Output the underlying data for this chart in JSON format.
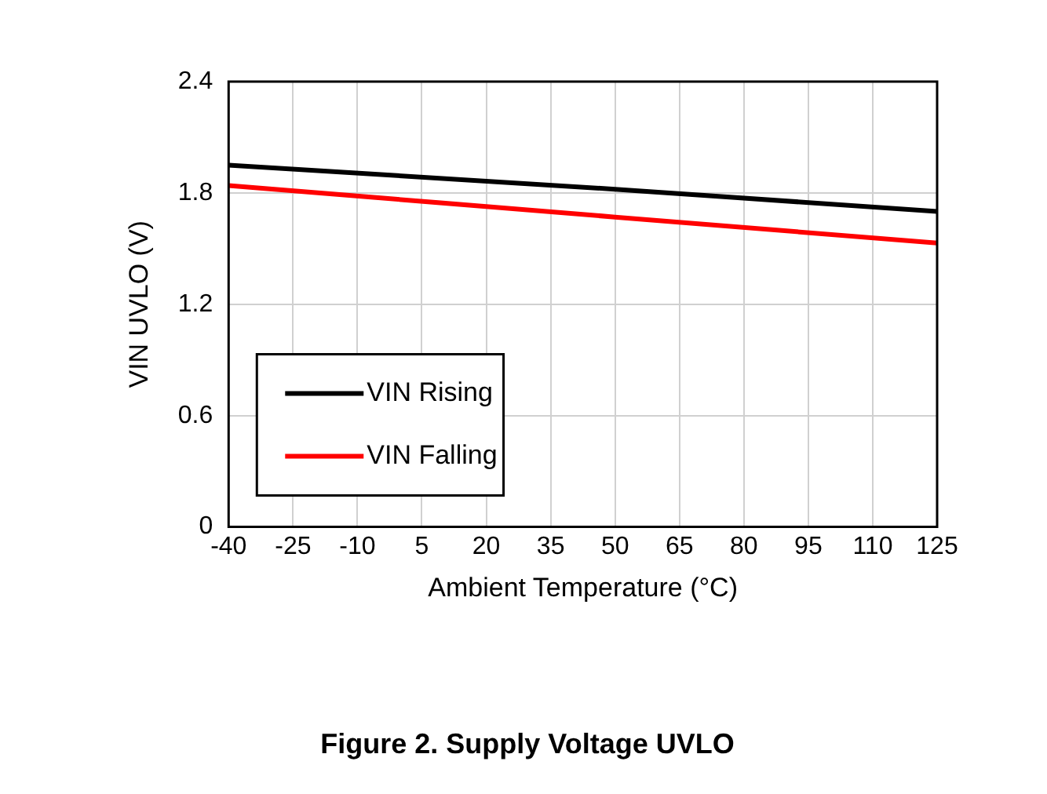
{
  "chart_data": {
    "type": "line",
    "title": "Figure 2. Supply Voltage UVLO",
    "xlabel": "Ambient Temperature (°C)",
    "ylabel": "VIN UVLO (V)",
    "x": [
      -40,
      50,
      125
    ],
    "series": [
      {
        "name": "VIN Rising",
        "color": "#000000",
        "values": [
          1.95,
          1.82,
          1.7
        ]
      },
      {
        "name": "VIN Falling",
        "color": "#ff0000",
        "values": [
          1.84,
          1.67,
          1.53
        ]
      }
    ],
    "xlim": [
      -40,
      125
    ],
    "xticks": [
      -40,
      -25,
      -10,
      5,
      20,
      35,
      50,
      65,
      80,
      95,
      110,
      125
    ],
    "ylim": [
      0,
      2.4
    ],
    "yticks": [
      0,
      0.6,
      1.2,
      1.8,
      2.4
    ],
    "grid": true,
    "legend": "bottom left",
    "marker": "none",
    "line_style": "solid"
  }
}
